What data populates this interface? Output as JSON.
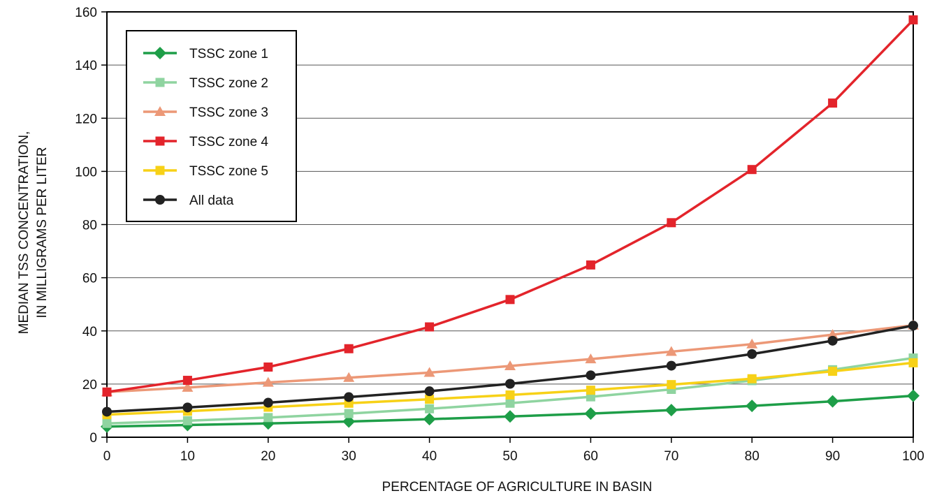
{
  "chart_data": {
    "type": "line",
    "xlabel": "PERCENTAGE OF AGRICULTURE IN BASIN",
    "ylabel_line1": "MEDIAN TSS CONCENTRATION,",
    "ylabel_line2": "IN MILLIGRAMS PER LITER",
    "x": [
      0,
      10,
      20,
      30,
      40,
      50,
      60,
      70,
      80,
      90,
      100
    ],
    "xlim": [
      0,
      100
    ],
    "ylim": [
      0,
      160
    ],
    "xticks": [
      0,
      10,
      20,
      30,
      40,
      50,
      60,
      70,
      80,
      90,
      100
    ],
    "yticks": [
      0,
      20,
      40,
      60,
      80,
      100,
      120,
      140,
      160
    ],
    "grid": "horizontal",
    "legend_position": "top-left",
    "series": [
      {
        "name": "TSSC zone 1",
        "marker": "diamond",
        "color": "#1e9e48",
        "values": [
          4.0,
          4.6,
          5.2,
          5.9,
          6.8,
          7.8,
          8.9,
          10.2,
          11.8,
          13.5,
          15.6
        ]
      },
      {
        "name": "TSSC zone 2",
        "marker": "square",
        "color": "#8fd4a0",
        "values": [
          5.2,
          6.2,
          7.4,
          8.9,
          10.7,
          12.8,
          15.2,
          18.0,
          21.3,
          25.4,
          29.8
        ]
      },
      {
        "name": "TSSC zone 3",
        "marker": "triangle",
        "color": "#ec9877",
        "values": [
          17.0,
          18.7,
          20.6,
          22.4,
          24.3,
          26.8,
          29.4,
          32.2,
          35.0,
          38.6,
          42.1
        ]
      },
      {
        "name": "TSSC zone 4",
        "marker": "square",
        "color": "#e3242b",
        "values": [
          17.0,
          21.4,
          26.4,
          33.3,
          41.5,
          51.8,
          64.8,
          80.7,
          100.7,
          125.7,
          157.0
        ]
      },
      {
        "name": "TSSC zone 5",
        "marker": "square",
        "color": "#f7d117",
        "values": [
          8.5,
          9.8,
          11.3,
          12.8,
          14.3,
          15.9,
          17.7,
          19.8,
          22.0,
          24.8,
          28.0
        ]
      },
      {
        "name": "All data",
        "marker": "circle",
        "color": "#222222",
        "values": [
          9.6,
          11.2,
          13.0,
          15.1,
          17.3,
          20.1,
          23.3,
          26.9,
          31.3,
          36.3,
          42.0
        ]
      }
    ]
  }
}
